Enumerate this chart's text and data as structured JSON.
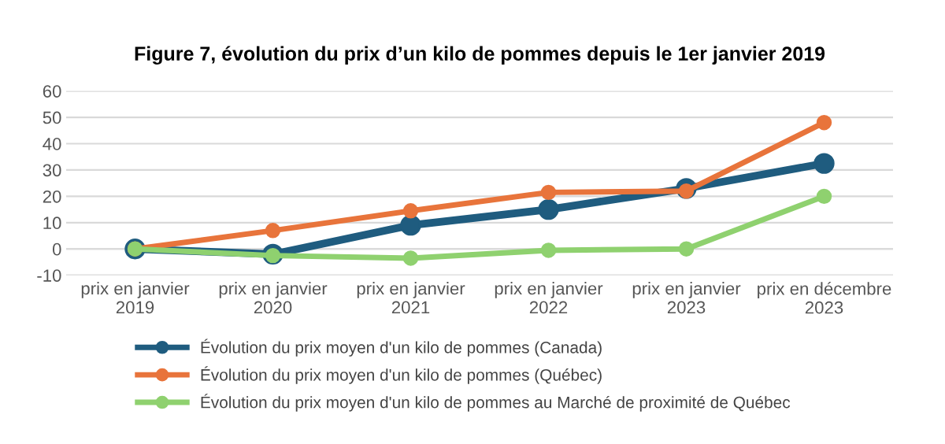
{
  "chart_data": {
    "type": "line",
    "title": "Figure 7, évolution du prix d’un kilo de pommes depuis le 1er janvier 2019",
    "categories": [
      "prix en janvier\n2019",
      "prix en janvier\n2020",
      "prix en janvier\n2021",
      "prix en janvier\n2022",
      "prix en janvier\n2023",
      "prix en décembre\n2023"
    ],
    "series": [
      {
        "name": "Évolution du prix moyen d'un kilo de pommes (Canada)",
        "color": "#1f5c7f",
        "values": [
          0,
          -2,
          9,
          15,
          23,
          32.5
        ]
      },
      {
        "name": "Évolution du prix moyen d'un kilo de pommes (Québec)",
        "color": "#e8743b",
        "values": [
          0,
          7,
          14.5,
          21.5,
          22,
          48
        ]
      },
      {
        "name": "Évolution du prix moyen d'un kilo de pommes au Marché de proximité de Québec",
        "color": "#8fd16f",
        "values": [
          0,
          -2.5,
          -3.5,
          -0.5,
          0,
          20
        ]
      }
    ],
    "ylim": [
      -10,
      60
    ],
    "yticks": [
      -10,
      0,
      10,
      20,
      30,
      40,
      50,
      60
    ],
    "grid": "y",
    "legend": "bottom",
    "marker": "circle",
    "line_style": "solid"
  }
}
